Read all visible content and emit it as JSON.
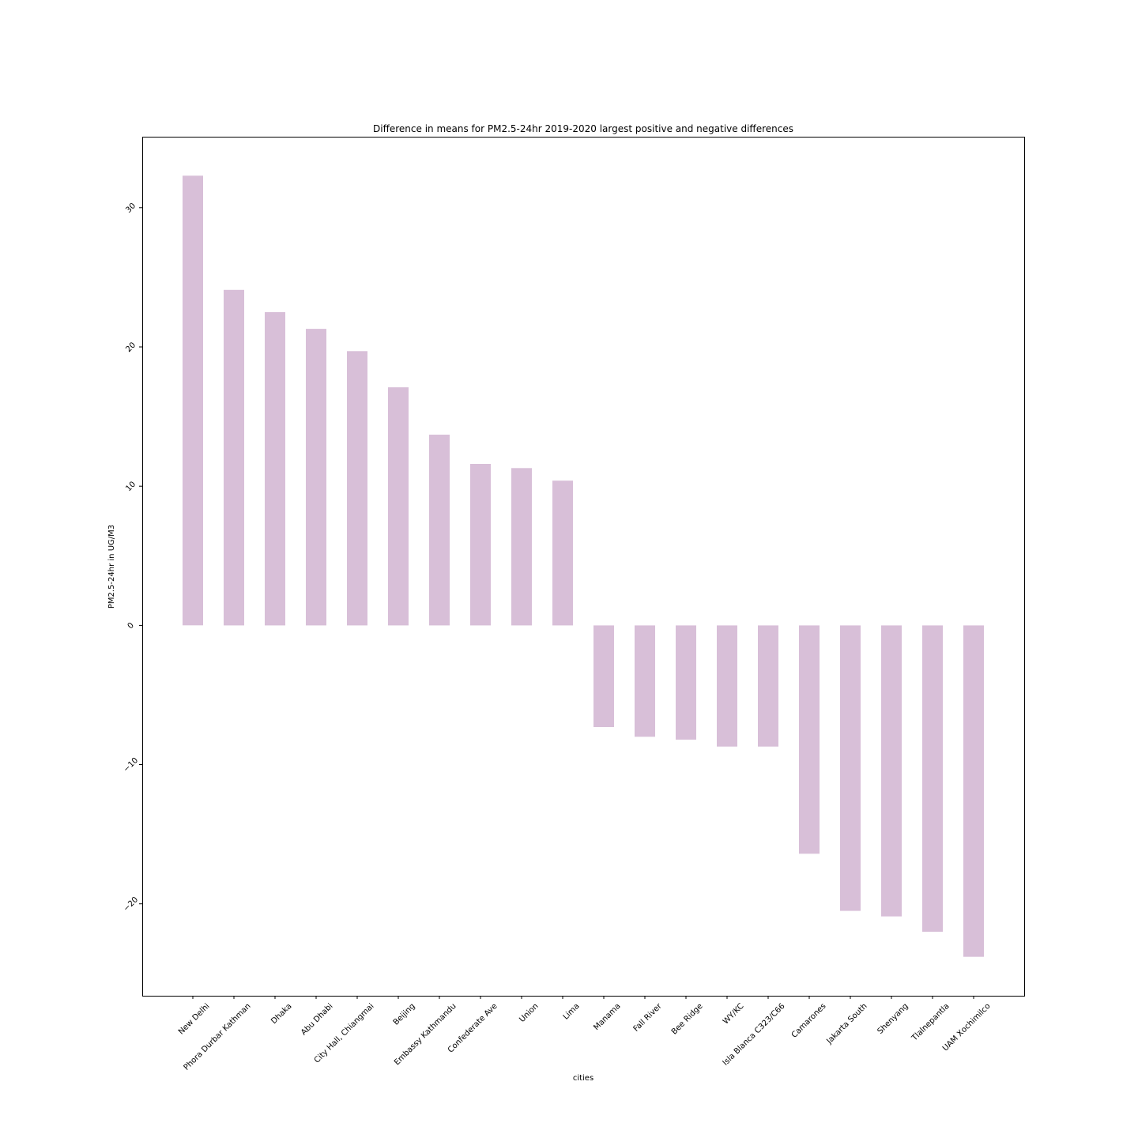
{
  "chart_data": {
    "type": "bar",
    "title": "Difference in means for PM2.5-24hr 2019-2020 largest positive and negative differences",
    "xlabel": "cities",
    "ylabel": "PM2.5-24hr in UG/M3",
    "categories": [
      "New Delhi",
      "Phora Durbar Kathman",
      "Dhaka",
      "Abu Dhabi",
      "City Hall, Chiangmai",
      "Beijing",
      "Embassy Kathmandu",
      "Confederate Ave",
      "Union",
      "Lima",
      "Manama",
      "Fall River",
      "Bee Ridge",
      "WY/KC",
      "Isla Blanca C323/C66",
      "Camarones",
      "Jakarta South",
      "Shenyang",
      "Tlalnepantla",
      "UAM Xochimilco"
    ],
    "values": [
      32.3,
      24.1,
      22.5,
      21.3,
      19.7,
      17.1,
      13.7,
      11.6,
      11.3,
      10.4,
      -7.3,
      -8.0,
      -8.2,
      -8.7,
      -8.7,
      -16.4,
      -20.5,
      -20.9,
      -22.0,
      -23.8
    ],
    "ylim": [
      -26.6,
      35.1
    ],
    "yticks": [
      -20,
      -10,
      0,
      10,
      20,
      30
    ],
    "ytick_labels": [
      "−20",
      "−10",
      "0",
      "10",
      "20",
      "30"
    ],
    "bar_color": "#d8bfd8",
    "grid": false,
    "legend": "none"
  }
}
